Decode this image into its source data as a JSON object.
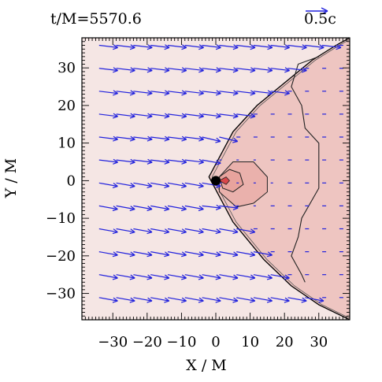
{
  "header": {
    "time_label": "t/M=5570.6",
    "scale_label": "0.5c"
  },
  "chart_data": {
    "type": "vector-field-contour",
    "title": "t/M=5570.6",
    "xlabel": "X / M",
    "ylabel": "Y / M",
    "xlim": [
      -39,
      39
    ],
    "ylim": [
      -37,
      38
    ],
    "x_ticks": [
      -30,
      -20,
      -10,
      0,
      10,
      20,
      30
    ],
    "y_ticks": [
      -30,
      -20,
      -10,
      0,
      10,
      20,
      30
    ],
    "x_tick_labels": [
      "−30",
      "−20",
      "−10",
      "0",
      "10",
      "20",
      "30"
    ],
    "y_tick_labels": [
      "−30",
      "−20",
      "−10",
      "0",
      "10",
      "20",
      "30"
    ],
    "velocity_scale": {
      "label": "0.5c",
      "value": 0.5
    },
    "black_hole": {
      "x": 0,
      "y": 0
    },
    "shock_front": {
      "apex": [
        -2,
        1
      ],
      "upper": [
        [
          -2,
          1
        ],
        [
          5,
          13
        ],
        [
          12,
          20
        ],
        [
          20,
          26
        ],
        [
          28,
          32
        ],
        [
          35,
          36
        ],
        [
          39,
          38
        ]
      ],
      "lower": [
        [
          -2,
          1
        ],
        [
          5,
          -11
        ],
        [
          14,
          -21
        ],
        [
          22,
          -28
        ],
        [
          30,
          -33
        ],
        [
          39,
          -37
        ]
      ]
    },
    "density_contours": [
      {
        "level": "outer",
        "points": [
          [
            30,
            33
          ],
          [
            24,
            31
          ],
          [
            22,
            25
          ],
          [
            25,
            20
          ],
          [
            26,
            14
          ],
          [
            30,
            10
          ],
          [
            30,
            -2
          ],
          [
            25,
            -10
          ],
          [
            24,
            -15
          ],
          [
            22,
            -20
          ],
          [
            25,
            -25
          ],
          [
            26,
            -27
          ]
        ]
      },
      {
        "level": "mid",
        "points": [
          [
            1,
            1
          ],
          [
            5,
            5
          ],
          [
            11,
            5
          ],
          [
            15,
            1
          ],
          [
            15,
            -3
          ],
          [
            11,
            -6
          ],
          [
            6,
            -7
          ],
          [
            1,
            -3
          ],
          [
            1,
            1
          ]
        ]
      },
      {
        "level": "inner",
        "points": [
          [
            1,
            1
          ],
          [
            4,
            3
          ],
          [
            7,
            2
          ],
          [
            8,
            -1
          ],
          [
            5,
            -3
          ],
          [
            2,
            -2
          ],
          [
            1,
            1
          ]
        ]
      },
      {
        "level": "core",
        "points": [
          [
            1,
            0
          ],
          [
            3,
            1
          ],
          [
            4,
            0
          ],
          [
            3,
            -1
          ],
          [
            1,
            0
          ]
        ]
      }
    ],
    "colors": {
      "arrows": "#2222dd",
      "ambient": "#f5e6e4",
      "shocked": "#eec5c1",
      "dense": "#e7a19a",
      "core": "#d9474b",
      "black_hole": "#000000"
    }
  }
}
